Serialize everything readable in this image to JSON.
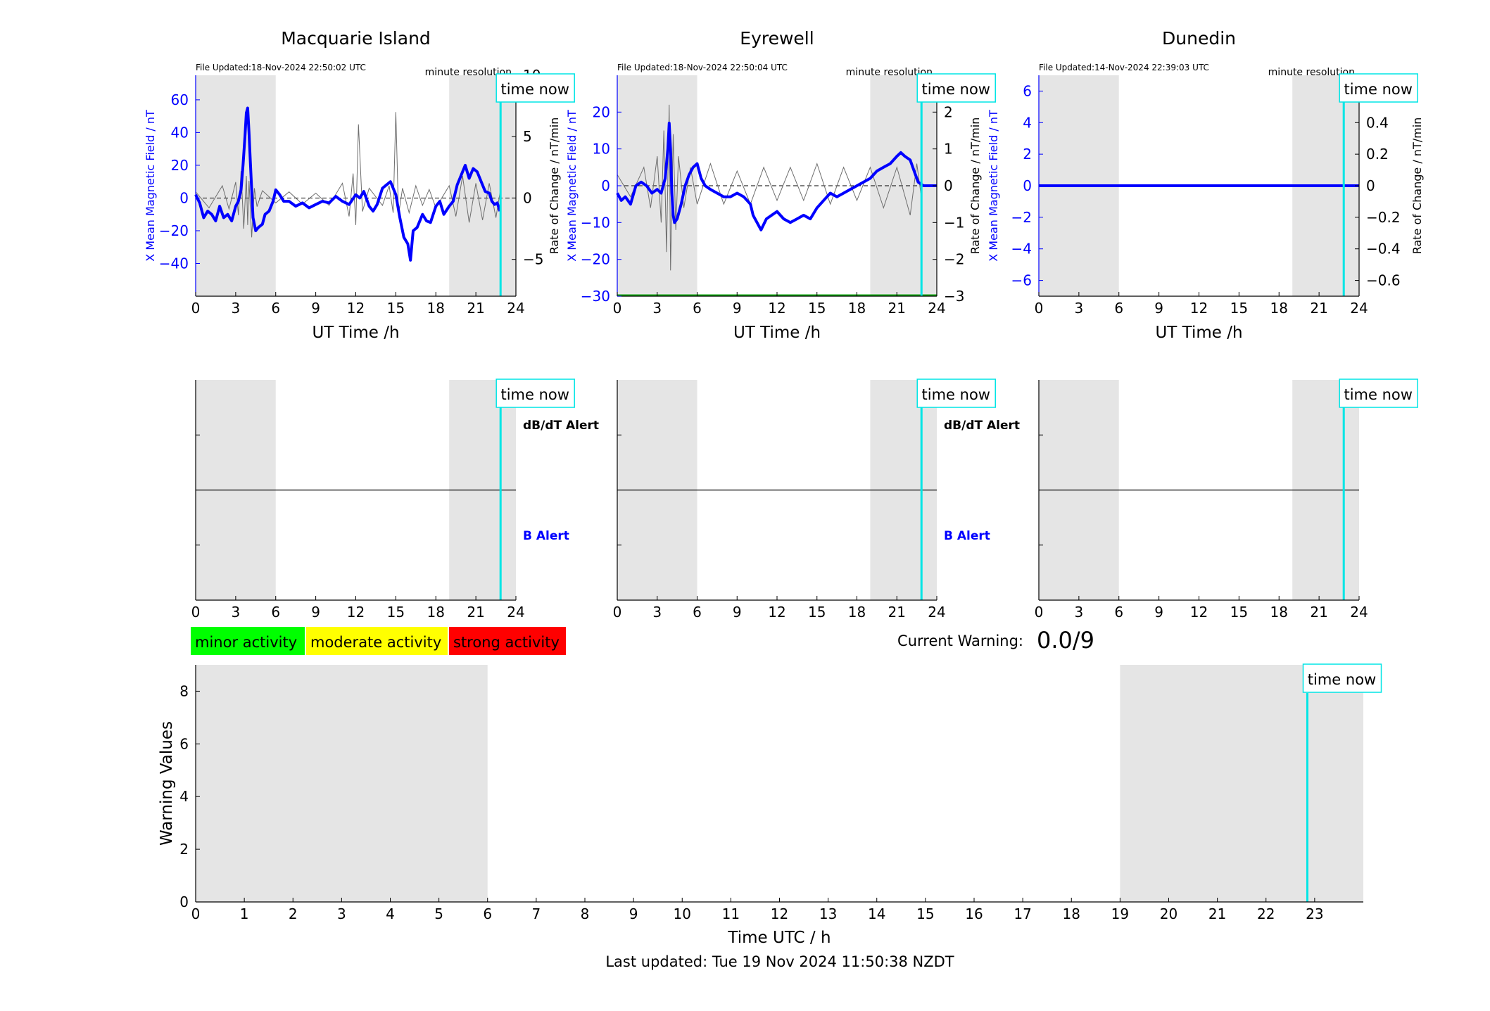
{
  "footer": {
    "last_updated": "Last updated: Tue 19 Nov 2024 11:50:38 NZDT"
  },
  "time_now_label": "time now",
  "current_warning": {
    "label": "Current Warning:",
    "value": "0.0/9"
  },
  "legend": [
    {
      "label": "minor activity",
      "color": "#00ff00"
    },
    {
      "label": "moderate activity",
      "color": "#ffff00"
    },
    {
      "label": "strong activity",
      "color": "#ff0000"
    }
  ],
  "colors": {
    "magnetic": "#0000ff",
    "rate": "#6e6e6e",
    "night_shading": "#e5e5e5",
    "time_now": "#00e5e5",
    "alert_db": "#000000",
    "alert_b": "#0000ff",
    "warning_line": "#00a000"
  },
  "chart_data": [
    {
      "type": "line",
      "title": "Macquarie Island",
      "file_updated": "File Updated:18-Nov-2024 22:50:02 UTC",
      "resolution": "minute resolution",
      "xlabel": "UT Time /h",
      "ylabel_left": "X Mean Magnetic Field / nT",
      "ylabel_right": "Rate of Change / nT/min",
      "xlim": [
        0,
        24
      ],
      "ylim_left": [
        -60,
        75
      ],
      "ylim_right": [
        -8,
        10
      ],
      "xticks": [
        0,
        3,
        6,
        9,
        12,
        15,
        18,
        21,
        24
      ],
      "yticks_left": [
        -40,
        -20,
        0,
        20,
        40,
        60
      ],
      "yticks_right": [
        -5,
        0,
        5,
        10
      ],
      "shading": [
        [
          0,
          6
        ],
        [
          19,
          24
        ]
      ],
      "time_now": 22.85,
      "series": [
        {
          "axis": "left",
          "x": [
            0,
            0.3,
            0.6,
            0.9,
            1.2,
            1.5,
            1.8,
            2.1,
            2.4,
            2.7,
            3,
            3.2,
            3.4,
            3.55,
            3.7,
            3.8,
            3.9,
            4,
            4.1,
            4.2,
            4.3,
            4.5,
            4.7,
            5,
            5.2,
            5.5,
            5.8,
            6,
            6.3,
            6.6,
            7,
            7.5,
            8,
            8.5,
            9,
            9.5,
            10,
            10.5,
            11,
            11.5,
            12,
            12.3,
            12.6,
            13,
            13.3,
            13.6,
            14,
            14.3,
            14.6,
            15,
            15.3,
            15.6,
            15.9,
            16.1,
            16.3,
            16.6,
            17,
            17.3,
            17.6,
            18,
            18.3,
            18.6,
            19,
            19.3,
            19.6,
            19.9,
            20.2,
            20.5,
            20.8,
            21.1,
            21.4,
            21.7,
            22,
            22.2,
            22.4,
            22.6,
            22.8
          ],
          "y": [
            2,
            -3,
            -12,
            -8,
            -10,
            -14,
            -5,
            -12,
            -10,
            -14,
            -5,
            -2,
            5,
            20,
            38,
            52,
            55,
            40,
            22,
            5,
            -12,
            -20,
            -18,
            -16,
            -10,
            -8,
            -2,
            5,
            2,
            -2,
            -2,
            -5,
            -3,
            -6,
            -4,
            -2,
            -3,
            1,
            -2,
            -4,
            2,
            0,
            4,
            -5,
            -8,
            -4,
            6,
            8,
            10,
            2,
            -12,
            -24,
            -28,
            -38,
            -20,
            -18,
            -10,
            -14,
            -15,
            -5,
            -2,
            -10,
            -5,
            -2,
            8,
            14,
            20,
            12,
            18,
            16,
            10,
            4,
            3,
            -2,
            -4,
            -3,
            -8
          ]
        },
        {
          "axis": "right",
          "x": [
            0,
            1,
            2,
            2.5,
            3,
            3.2,
            3.4,
            3.6,
            3.8,
            3.9,
            4,
            4.2,
            4.4,
            4.6,
            5,
            6,
            7,
            8,
            9,
            10,
            11,
            11.5,
            11.8,
            12,
            12.2,
            12.5,
            13,
            14,
            14.5,
            14.8,
            15,
            15.2,
            15.5,
            16,
            16.5,
            17,
            17.5,
            18,
            19,
            19.5,
            20,
            20.5,
            21,
            21.5,
            22,
            22.5,
            22.8
          ],
          "y": [
            0.5,
            -0.8,
            1,
            -0.9,
            1.3,
            -1.4,
            2.2,
            -2.5,
            1.8,
            -2.2,
            1.4,
            -3.2,
            0.8,
            -0.7,
            0.6,
            -0.4,
            0.5,
            -0.5,
            0.4,
            -0.6,
            1.2,
            -1.5,
            2,
            -2.2,
            6,
            -1.1,
            0.8,
            -0.6,
            1,
            -1.2,
            7,
            -1.4,
            0.8,
            -1.2,
            1,
            -0.6,
            0.7,
            -0.8,
            1,
            -1.5,
            1.8,
            -2,
            1.2,
            -1.8,
            1.2,
            -1.6,
            0.4
          ]
        }
      ]
    },
    {
      "type": "line",
      "title": "Eyrewell",
      "file_updated": "File Updated:18-Nov-2024 22:50:04 UTC",
      "resolution": "minute resolution",
      "xlabel": "UT Time /h",
      "ylabel_left": "X Mean Magnetic Field / nT",
      "ylabel_right": "Rate of Change / nT/min",
      "xlim": [
        0,
        24
      ],
      "ylim_left": [
        -30,
        30
      ],
      "ylim_right": [
        -3,
        3
      ],
      "xticks": [
        0,
        3,
        6,
        9,
        12,
        15,
        18,
        21,
        24
      ],
      "yticks_left": [
        -30,
        -20,
        -10,
        0,
        10,
        20
      ],
      "yticks_right": [
        -3,
        -2,
        -1,
        0,
        1,
        2
      ],
      "shading": [
        [
          0,
          6
        ],
        [
          19,
          24
        ]
      ],
      "time_now": 22.85,
      "series": [
        {
          "axis": "left",
          "x": [
            0,
            0.3,
            0.6,
            1,
            1.4,
            1.8,
            2.2,
            2.6,
            3,
            3.3,
            3.6,
            3.8,
            3.9,
            4,
            4.1,
            4.2,
            4.3,
            4.5,
            4.8,
            5.1,
            5.4,
            5.7,
            6,
            6.3,
            6.6,
            7,
            7.5,
            8,
            8.5,
            9,
            9.5,
            10,
            10.2,
            10.5,
            10.8,
            11.2,
            11.6,
            12,
            12.5,
            13,
            13.5,
            14,
            14.5,
            15,
            15.5,
            16,
            16.5,
            17,
            17.5,
            18,
            18.5,
            19,
            19.5,
            20,
            20.5,
            21,
            21.3,
            21.6,
            22,
            22.3,
            22.6,
            23,
            24
          ],
          "y": [
            -2,
            -4,
            -3,
            -5,
            0,
            1,
            0,
            -2,
            -1,
            -2,
            2,
            10,
            17,
            10,
            -2,
            -8,
            -10,
            -9,
            -5,
            0,
            3,
            5,
            6,
            2,
            0,
            -1,
            -2,
            -3,
            -3,
            -2,
            -3,
            -5,
            -8,
            -10,
            -12,
            -9,
            -8,
            -7,
            -9,
            -10,
            -9,
            -8,
            -9,
            -6,
            -4,
            -2,
            -3,
            -2,
            -1,
            0,
            1,
            2,
            4,
            5,
            6,
            8,
            9,
            8,
            7,
            4,
            1,
            0,
            0
          ]
        },
        {
          "axis": "right",
          "x": [
            0,
            1,
            2,
            2.5,
            3,
            3.3,
            3.5,
            3.7,
            3.9,
            4,
            4.2,
            4.4,
            4.6,
            5,
            5.5,
            6,
            7,
            8,
            9,
            10,
            11,
            12,
            13,
            14,
            15,
            16,
            17,
            18,
            19,
            20,
            21,
            22,
            22.5,
            22.8
          ],
          "y": [
            0.3,
            -0.3,
            0.5,
            -0.6,
            0.8,
            -1,
            1.5,
            -1.8,
            2.2,
            -2.3,
            1.4,
            -1.2,
            0.8,
            -0.6,
            0.5,
            -0.5,
            0.6,
            -0.5,
            0.4,
            -0.5,
            0.5,
            -0.4,
            0.5,
            -0.4,
            0.6,
            -0.5,
            0.5,
            -0.4,
            0.5,
            -0.6,
            0.5,
            -0.8,
            0.6,
            -0.2
          ]
        }
      ]
    },
    {
      "type": "line",
      "title": "Dunedin",
      "file_updated": "File Updated:14-Nov-2024 22:39:03 UTC",
      "resolution": "minute resolution",
      "xlabel": "UT Time /h",
      "ylabel_left": "X Mean Magnetic Field / nT",
      "ylabel_right": "Rate of Change / nT/min",
      "xlim": [
        0,
        24
      ],
      "ylim_left": [
        -7,
        7
      ],
      "ylim_right": [
        -0.7,
        0.7
      ],
      "xticks": [
        0,
        3,
        6,
        9,
        12,
        15,
        18,
        21,
        24
      ],
      "yticks_left": [
        -6,
        -4,
        -2,
        0,
        2,
        4,
        6
      ],
      "yticks_right": [
        -0.6,
        -0.4,
        -0.2,
        0,
        0.2,
        0.4,
        0.6
      ],
      "ytick_labels_right": [
        "−0.6",
        "−0.4",
        "−0.2",
        "0",
        "0.2",
        "0.4",
        "0.6"
      ],
      "shading": [
        [
          0,
          6
        ],
        [
          19,
          24
        ]
      ],
      "time_now": 22.85,
      "series": [
        {
          "axis": "left",
          "x": [
            0,
            24
          ],
          "y": [
            0,
            0
          ]
        },
        {
          "axis": "right",
          "x": [
            0,
            24
          ],
          "y": [
            0,
            0
          ]
        }
      ]
    },
    {
      "type": "line",
      "subtype": "alert",
      "station": "Macquarie Island",
      "xlim": [
        0,
        24
      ],
      "xticks": [
        0,
        3,
        6,
        9,
        12,
        15,
        18,
        21,
        24
      ],
      "shading": [
        [
          0,
          6
        ],
        [
          19,
          24
        ]
      ],
      "time_now": 22.85,
      "labels": [
        "dB/dT Alert",
        "B Alert"
      ]
    },
    {
      "type": "line",
      "subtype": "alert",
      "station": "Eyrewell",
      "xlim": [
        0,
        24
      ],
      "xticks": [
        0,
        3,
        6,
        9,
        12,
        15,
        18,
        21,
        24
      ],
      "shading": [
        [
          0,
          6
        ],
        [
          19,
          24
        ]
      ],
      "time_now": 22.85,
      "labels": [
        "dB/dT Alert",
        "B Alert"
      ]
    },
    {
      "type": "line",
      "subtype": "alert",
      "station": "Dunedin",
      "xlim": [
        0,
        24
      ],
      "xticks": [
        0,
        3,
        6,
        9,
        12,
        15,
        18,
        21,
        24
      ],
      "shading": [
        [
          0,
          6
        ],
        [
          19,
          24
        ]
      ],
      "time_now": 22.85,
      "labels": []
    },
    {
      "type": "line",
      "subtype": "warning",
      "xlabel": "Time UTC / h",
      "ylabel": "Warning Values",
      "xlim": [
        0,
        24
      ],
      "ylim": [
        0,
        9
      ],
      "xticks": [
        0,
        1,
        2,
        3,
        4,
        5,
        6,
        7,
        8,
        9,
        10,
        11,
        12,
        13,
        14,
        15,
        16,
        17,
        18,
        19,
        20,
        21,
        22,
        23
      ],
      "yticks": [
        0,
        2,
        4,
        6,
        8
      ],
      "shading": [
        [
          0,
          6
        ],
        [
          19,
          24
        ]
      ],
      "time_now": 22.85,
      "series": [
        {
          "x": [],
          "y": []
        }
      ]
    }
  ]
}
